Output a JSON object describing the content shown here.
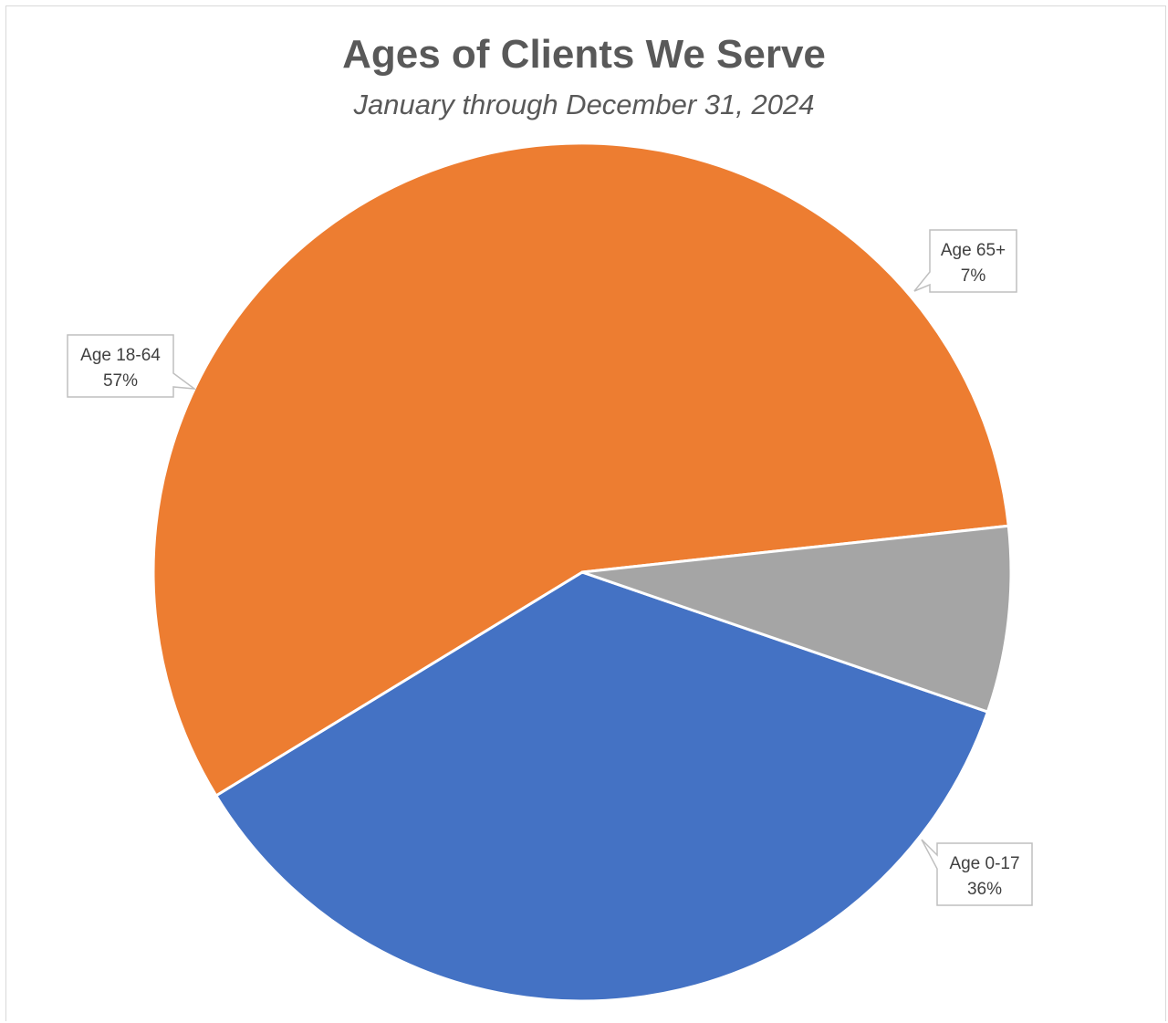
{
  "chart_data": {
    "type": "pie",
    "title": "Ages of Clients We Serve",
    "subtitle": "January through December 31, 2024",
    "slices": [
      {
        "label": "Age 0-17",
        "value": 36,
        "pct_label": "36%",
        "color": "#4472C4"
      },
      {
        "label": "Age 18-64",
        "value": 57,
        "pct_label": "57%",
        "color": "#ED7D31"
      },
      {
        "label": "Age 65+",
        "value": 7,
        "pct_label": "7%",
        "color": "#A5A5A5"
      }
    ],
    "legend": "none",
    "data_labels": "callout"
  }
}
